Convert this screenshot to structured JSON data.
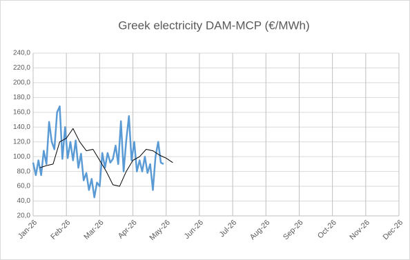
{
  "chart_data": {
    "type": "line",
    "title": "Greek electricity DAM-MCP (€/MWh)",
    "xlim": [
      0,
      11
    ],
    "xticks": [
      {
        "value": 0,
        "label": "Jan-26"
      },
      {
        "value": 1,
        "label": "Feb-26"
      },
      {
        "value": 2,
        "label": "Mar-26"
      },
      {
        "value": 3,
        "label": "Apr-26"
      },
      {
        "value": 4,
        "label": "May-26"
      },
      {
        "value": 5,
        "label": "Jun-26"
      },
      {
        "value": 6,
        "label": "Jul-26"
      },
      {
        "value": 7,
        "label": "Aug-26"
      },
      {
        "value": 8,
        "label": "Sep-26"
      },
      {
        "value": 9,
        "label": "Oct-26"
      },
      {
        "value": 10,
        "label": "Nov-26"
      },
      {
        "value": 11,
        "label": "Dec-26"
      }
    ],
    "ylim": [
      20,
      240
    ],
    "yticks": [
      {
        "value": 20,
        "label": "20,0"
      },
      {
        "value": 40,
        "label": "40,0"
      },
      {
        "value": 60,
        "label": "60,0"
      },
      {
        "value": 80,
        "label": "80,0"
      },
      {
        "value": 100,
        "label": "100,0"
      },
      {
        "value": 120,
        "label": "120,0"
      },
      {
        "value": 140,
        "label": "140,0"
      },
      {
        "value": 160,
        "label": "160,0"
      },
      {
        "value": 180,
        "label": "180,0"
      },
      {
        "value": 200,
        "label": "200,0"
      },
      {
        "value": 220,
        "label": "220,0"
      },
      {
        "value": 240,
        "label": "240,0"
      }
    ],
    "grid": true,
    "series": [
      {
        "color": "#5b9bd5",
        "width": 2.5,
        "x": [
          0,
          0.08,
          0.16,
          0.24,
          0.32,
          0.4,
          0.48,
          0.56,
          0.64,
          0.72,
          0.8,
          0.88,
          0.96,
          1.04,
          1.12,
          1.2,
          1.28,
          1.36,
          1.44,
          1.52,
          1.6,
          1.68,
          1.76,
          1.84,
          1.92,
          2,
          2.08,
          2.16,
          2.24,
          2.32,
          2.4,
          2.48,
          2.56,
          2.64,
          2.72,
          2.8,
          2.88,
          2.96,
          3.04,
          3.12,
          3.2,
          3.28,
          3.36,
          3.44,
          3.52,
          3.6,
          3.68,
          3.76,
          3.84,
          3.92
        ],
        "values": [
          92,
          75,
          95,
          75,
          108,
          90,
          147,
          120,
          110,
          160,
          168,
          97,
          140,
          98,
          120,
          95,
          122,
          85,
          104,
          68,
          78,
          55,
          70,
          45,
          65,
          60,
          105,
          85,
          105,
          92,
          97,
          115,
          90,
          148,
          80,
          122,
          155,
          95,
          120,
          80,
          95,
          80,
          100,
          78,
          90,
          55,
          100,
          120,
          92,
          90
        ]
      },
      {
        "color": "#000000",
        "width": 1,
        "x": [
          0.2,
          0.4,
          0.6,
          0.8,
          1,
          1.2,
          1.4,
          1.6,
          1.8,
          2,
          2.2,
          2.4,
          2.6,
          2.8,
          3,
          3.2,
          3.4,
          3.6,
          3.8,
          4,
          4.2
        ],
        "values": [
          85,
          88,
          90,
          120,
          125,
          138,
          120,
          108,
          110,
          95,
          80,
          62,
          60,
          80,
          95,
          100,
          110,
          108,
          102,
          98,
          92
        ]
      }
    ]
  }
}
